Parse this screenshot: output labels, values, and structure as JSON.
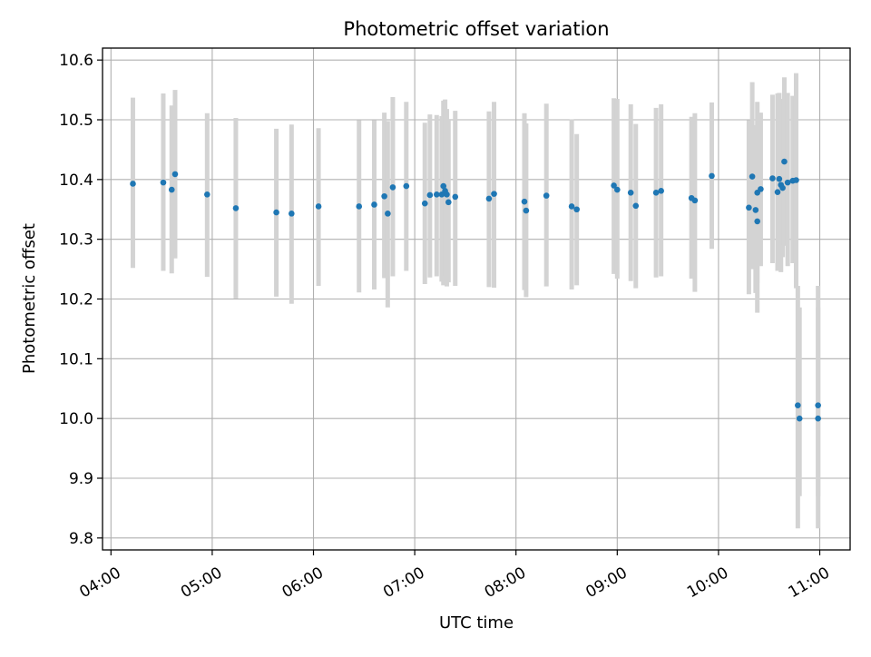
{
  "chart_data": {
    "type": "scatter",
    "title": "Photometric offset variation",
    "xlabel": "UTC time",
    "ylabel": "Photometric offset",
    "xlim": [
      "03:55",
      "11:18"
    ],
    "ylim": [
      9.78,
      10.62
    ],
    "grid": true,
    "x_ticks": [
      "04:00",
      "05:00",
      "06:00",
      "07:00",
      "08:00",
      "09:00",
      "10:00",
      "11:00"
    ],
    "y_ticks": [
      "9.8",
      "9.9",
      "10.0",
      "10.1",
      "10.2",
      "10.3",
      "10.4",
      "10.5",
      "10.6"
    ],
    "colors": {
      "point": "#1f77b4",
      "errorbar": "#d3d3d3",
      "grid": "#b0b0b0"
    },
    "series": [
      {
        "x": [
          "04:13",
          "04:31",
          "04:36",
          "04:38",
          "04:57",
          "05:14",
          "05:38",
          "05:47",
          "06:03",
          "06:27",
          "06:36",
          "06:42",
          "06:44",
          "06:47",
          "06:55",
          "07:06",
          "07:09",
          "07:13",
          "07:16",
          "07:17",
          "07:18",
          "07:19",
          "07:20",
          "07:24",
          "07:44",
          "07:47",
          "08:05",
          "08:06",
          "08:18",
          "08:33",
          "08:36",
          "08:58",
          "09:00",
          "09:08",
          "09:11",
          "09:23",
          "09:26",
          "09:44",
          "09:46",
          "09:56",
          "10:18",
          "10:20",
          "10:22",
          "10:23",
          "10:23",
          "10:25",
          "10:32",
          "10:35",
          "10:36",
          "10:37",
          "10:38",
          "10:39",
          "10:41",
          "10:44",
          "10:46",
          "10:47",
          "10:48",
          "10:59",
          "10:59"
        ],
        "y": [
          10.393,
          10.395,
          10.383,
          10.409,
          10.375,
          10.352,
          10.345,
          10.343,
          10.355,
          10.355,
          10.358,
          10.372,
          10.343,
          10.387,
          10.389,
          10.36,
          10.374,
          10.375,
          10.375,
          10.389,
          10.381,
          10.375,
          10.362,
          10.371,
          10.368,
          10.376,
          10.363,
          10.348,
          10.373,
          10.355,
          10.35,
          10.39,
          10.383,
          10.378,
          10.356,
          10.378,
          10.381,
          10.369,
          10.365,
          10.406,
          10.353,
          10.405,
          10.349,
          10.33,
          10.378,
          10.384,
          10.402,
          10.379,
          10.401,
          10.391,
          10.386,
          10.43,
          10.395,
          10.398,
          10.399,
          10.022,
          10.0,
          10.022,
          10.0
        ],
        "err_low": [
          10.252,
          10.247,
          10.243,
          10.268,
          10.237,
          10.201,
          10.204,
          10.192,
          10.222,
          10.211,
          10.216,
          10.235,
          10.186,
          10.238,
          10.247,
          10.225,
          10.236,
          10.238,
          10.229,
          10.223,
          10.238,
          10.221,
          10.228,
          10.222,
          10.22,
          10.219,
          10.215,
          10.203,
          10.221,
          10.216,
          10.223,
          10.242,
          10.234,
          10.23,
          10.218,
          10.236,
          10.238,
          10.234,
          10.212,
          10.284,
          10.208,
          10.25,
          10.21,
          10.177,
          10.227,
          10.255,
          10.26,
          10.247,
          10.258,
          10.245,
          10.27,
          10.289,
          10.255,
          10.26,
          10.218,
          9.816,
          9.87,
          9.816,
          9.87
        ],
        "err_high": [
          10.537,
          10.544,
          10.524,
          10.55,
          10.511,
          10.503,
          10.485,
          10.492,
          10.486,
          10.499,
          10.499,
          10.512,
          10.498,
          10.538,
          10.53,
          10.495,
          10.509,
          10.508,
          10.506,
          10.532,
          10.534,
          10.518,
          10.5,
          10.515,
          10.514,
          10.53,
          10.511,
          10.494,
          10.527,
          10.501,
          10.476,
          10.536,
          10.535,
          10.526,
          10.493,
          10.52,
          10.526,
          10.505,
          10.511,
          10.529,
          10.499,
          10.563,
          10.491,
          10.485,
          10.53,
          10.512,
          10.542,
          10.544,
          10.545,
          10.535,
          10.512,
          10.571,
          10.545,
          10.54,
          10.578,
          10.222,
          10.186,
          10.222,
          10.186
        ]
      }
    ]
  }
}
